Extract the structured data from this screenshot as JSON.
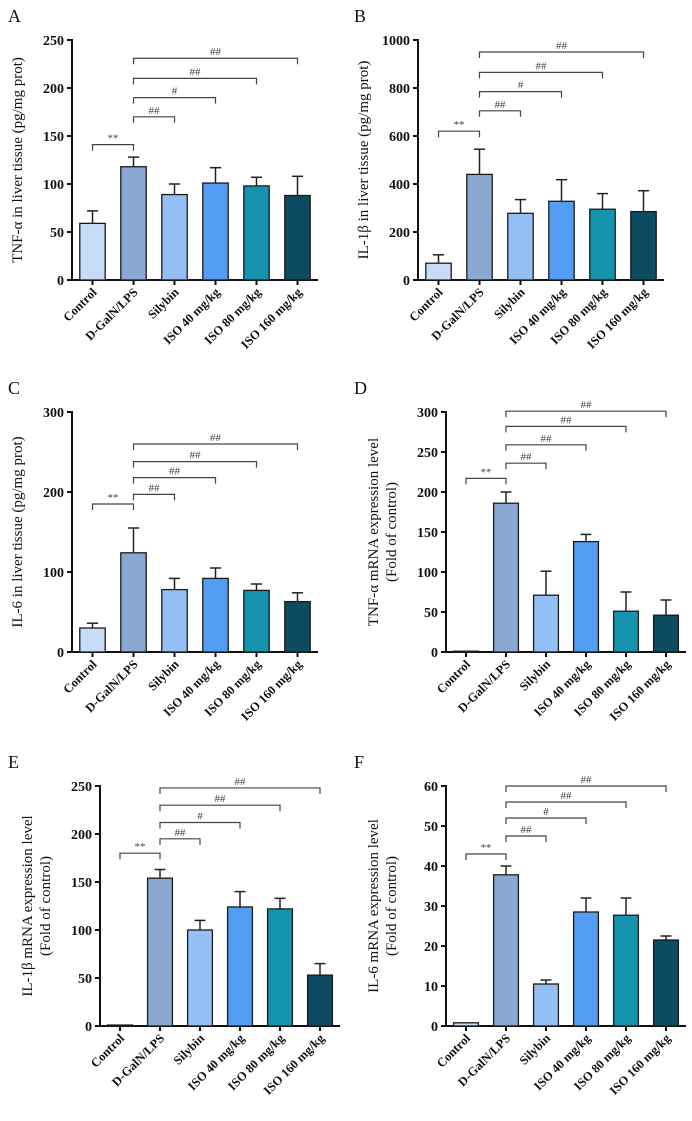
{
  "colors": [
    "#c6dcf7",
    "#89a9d3",
    "#93bff4",
    "#549df5",
    "#1593ad",
    "#0d4b62"
  ],
  "chart_data": [
    {
      "type": "bar",
      "panel": "A",
      "title": "",
      "ylabel": [
        "TNF-α in liver tissue (pg/mg prot)"
      ],
      "ylim": [
        0,
        250
      ],
      "yticks": [
        0,
        50,
        100,
        150,
        200,
        250
      ],
      "categories": [
        "Control",
        "D-GalN/LPS",
        "Silybin",
        "ISO 40 mg/kg",
        "ISO 80 mg/kg",
        "ISO 160 mg/kg"
      ],
      "values": [
        59,
        118,
        89,
        101,
        98,
        88
      ],
      "error": [
        13,
        10,
        11,
        16,
        9,
        20
      ],
      "comparisons": [
        {
          "from": 0,
          "to": 1,
          "y": 141,
          "label": "**"
        },
        {
          "from": 1,
          "to": 2,
          "y": 170,
          "label": "##"
        },
        {
          "from": 1,
          "to": 3,
          "y": 190,
          "label": "#"
        },
        {
          "from": 1,
          "to": 4,
          "y": 210,
          "label": "##"
        },
        {
          "from": 1,
          "to": 5,
          "y": 231,
          "label": "##"
        }
      ]
    },
    {
      "type": "bar",
      "panel": "B",
      "title": "",
      "ylabel": [
        "IL-1β in liver tissue (pg/mg prot)"
      ],
      "ylim": [
        0,
        1000
      ],
      "yticks": [
        0,
        200,
        400,
        600,
        800,
        1000
      ],
      "categories": [
        "Control",
        "D-GalN/LPS",
        "Silybin",
        "ISO 40 mg/kg",
        "ISO 80 mg/kg",
        "ISO 160 mg/kg"
      ],
      "values": [
        70,
        440,
        278,
        328,
        295,
        285
      ],
      "error": [
        35,
        105,
        57,
        90,
        65,
        87
      ],
      "comparisons": [
        {
          "from": 0,
          "to": 1,
          "y": 620,
          "label": "**"
        },
        {
          "from": 1,
          "to": 2,
          "y": 705,
          "label": "##"
        },
        {
          "from": 1,
          "to": 3,
          "y": 785,
          "label": "#"
        },
        {
          "from": 1,
          "to": 4,
          "y": 865,
          "label": "##"
        },
        {
          "from": 1,
          "to": 5,
          "y": 950,
          "label": "##"
        }
      ]
    },
    {
      "type": "bar",
      "panel": "C",
      "title": "",
      "ylabel": [
        "IL-6 in liver tissue (pg/mg prot)"
      ],
      "ylim": [
        0,
        300
      ],
      "yticks": [
        0,
        100,
        200,
        300
      ],
      "categories": [
        "Control",
        "D-GalN/LPS",
        "Silybin",
        "ISO 40 mg/kg",
        "ISO 80 mg/kg",
        "ISO 160 mg/kg"
      ],
      "values": [
        30,
        124,
        78,
        92,
        77,
        63
      ],
      "error": [
        6,
        31,
        14,
        13,
        8,
        11
      ],
      "comparisons": [
        {
          "from": 0,
          "to": 1,
          "y": 185,
          "label": "**"
        },
        {
          "from": 1,
          "to": 2,
          "y": 197,
          "label": "##"
        },
        {
          "from": 1,
          "to": 3,
          "y": 218,
          "label": "##"
        },
        {
          "from": 1,
          "to": 4,
          "y": 238,
          "label": "##"
        },
        {
          "from": 1,
          "to": 5,
          "y": 260,
          "label": "##"
        }
      ]
    },
    {
      "type": "bar",
      "panel": "D",
      "title": "",
      "ylabel": [
        "TNF-α mRNA expression level",
        "(Fold of control)"
      ],
      "ylim": [
        0,
        300
      ],
      "yticks": [
        0,
        50,
        100,
        150,
        200,
        250,
        300
      ],
      "categories": [
        "Control",
        "D-GalN/LPS",
        "Silybin",
        "ISO 40 mg/kg",
        "ISO 80 mg/kg",
        "ISO 160 mg/kg"
      ],
      "values": [
        1,
        186,
        71,
        138,
        51,
        46
      ],
      "error": [
        0,
        14,
        30,
        9,
        24,
        19
      ],
      "comparisons": [
        {
          "from": 0,
          "to": 1,
          "y": 217,
          "label": "**"
        },
        {
          "from": 1,
          "to": 2,
          "y": 236,
          "label": "##"
        },
        {
          "from": 1,
          "to": 3,
          "y": 259,
          "label": "##"
        },
        {
          "from": 1,
          "to": 4,
          "y": 282,
          "label": "##"
        },
        {
          "from": 1,
          "to": 5,
          "y": 301,
          "label": "##"
        }
      ]
    },
    {
      "type": "bar",
      "panel": "E",
      "title": "",
      "ylabel": [
        "IL-1β mRNA expression level",
        "(Fold of control)"
      ],
      "ylim": [
        0,
        250
      ],
      "yticks": [
        0,
        50,
        100,
        150,
        200,
        250
      ],
      "categories": [
        "Control",
        "D-GalN/LPS",
        "Silybin",
        "ISO 40 mg/kg",
        "ISO 80 mg/kg",
        "ISO 160 mg/kg"
      ],
      "values": [
        1,
        154,
        100,
        124,
        122,
        53
      ],
      "error": [
        0,
        9,
        10,
        16,
        11,
        12
      ],
      "comparisons": [
        {
          "from": 0,
          "to": 1,
          "y": 180,
          "label": "**"
        },
        {
          "from": 1,
          "to": 2,
          "y": 195,
          "label": "##"
        },
        {
          "from": 1,
          "to": 3,
          "y": 212,
          "label": "#"
        },
        {
          "from": 1,
          "to": 4,
          "y": 230,
          "label": "##"
        },
        {
          "from": 1,
          "to": 5,
          "y": 248,
          "label": "##"
        }
      ]
    },
    {
      "type": "bar",
      "panel": "F",
      "title": "",
      "ylabel": [
        "IL-6 mRNA expression level",
        "(Fold of control)"
      ],
      "ylim": [
        0,
        60
      ],
      "yticks": [
        0,
        10,
        20,
        30,
        40,
        50,
        60
      ],
      "categories": [
        "Control",
        "D-GalN/LPS",
        "Silybin",
        "ISO 40 mg/kg",
        "ISO 80 mg/kg",
        "ISO 160 mg/kg"
      ],
      "values": [
        0.8,
        37.8,
        10.5,
        28.5,
        27.7,
        21.5
      ],
      "error": [
        0,
        2.2,
        1,
        3.5,
        4.3,
        1
      ],
      "comparisons": [
        {
          "from": 0,
          "to": 1,
          "y": 43,
          "label": "**"
        },
        {
          "from": 1,
          "to": 2,
          "y": 47.5,
          "label": "##"
        },
        {
          "from": 1,
          "to": 3,
          "y": 52,
          "label": "#"
        },
        {
          "from": 1,
          "to": 4,
          "y": 56,
          "label": "##"
        },
        {
          "from": 1,
          "to": 5,
          "y": 60,
          "label": "##"
        }
      ]
    }
  ]
}
